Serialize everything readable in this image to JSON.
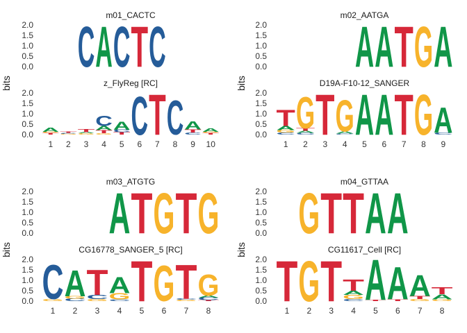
{
  "colors": {
    "A": "#109648",
    "C": "#255C99",
    "G": "#F7B32B",
    "T": "#D62839"
  },
  "chart_data": {
    "type": "sequence_logo",
    "ylabel": "bits",
    "y_ticks": [
      "0.0",
      "0.5",
      "1.0",
      "1.5",
      "2.0"
    ],
    "ylim": [
      0,
      2
    ],
    "panels": [
      {
        "top": {
          "title": "m01_CACTC",
          "offset": 2,
          "positions": [
            [
              [
                "C",
                2.0
              ]
            ],
            [
              [
                "A",
                2.0
              ]
            ],
            [
              [
                "C",
                2.0
              ]
            ],
            [
              [
                "T",
                2.0
              ]
            ],
            [
              [
                "C",
                2.0
              ]
            ]
          ]
        },
        "bottom": {
          "title": "z_FlyReg [RC]",
          "x_labels": [
            "1",
            "2",
            "3",
            "4",
            "5",
            "6",
            "7",
            "8",
            "9",
            "10"
          ],
          "positions": [
            [
              [
                "T",
                0.08
              ],
              [
                "G",
                0.06
              ],
              [
                "A",
                0.2
              ]
            ],
            [
              [
                "G",
                0.04
              ],
              [
                "C",
                0.04
              ],
              [
                "T",
                0.06
              ]
            ],
            [
              [
                "G",
                0.06
              ],
              [
                "A",
                0.06
              ],
              [
                "T",
                0.15
              ]
            ],
            [
              [
                "G",
                0.06
              ],
              [
                "T",
                0.15
              ],
              [
                "A",
                0.2
              ],
              [
                "C",
                0.5
              ]
            ],
            [
              [
                "T",
                0.12
              ],
              [
                "C",
                0.12
              ],
              [
                "A",
                0.4
              ]
            ],
            [
              [
                "C",
                1.9
              ]
            ],
            [
              [
                "T",
                2.0
              ]
            ],
            [
              [
                "C",
                1.7
              ]
            ],
            [
              [
                "C",
                0.1
              ],
              [
                "T",
                0.15
              ],
              [
                "A",
                0.4
              ]
            ],
            [
              [
                "T",
                0.08
              ],
              [
                "G",
                0.06
              ],
              [
                "A",
                0.18
              ]
            ]
          ]
        }
      },
      {
        "top": {
          "title": "m02_AATGA",
          "offset": 4,
          "positions": [
            [
              [
                "A",
                2.0
              ]
            ],
            [
              [
                "A",
                2.0
              ]
            ],
            [
              [
                "T",
                2.0
              ]
            ],
            [
              [
                "G",
                2.0
              ]
            ],
            [
              [
                "A",
                2.0
              ]
            ]
          ]
        },
        "bottom": {
          "title": "D19A-F10-12_SANGER",
          "x_labels": [
            "1",
            "2",
            "3",
            "4",
            "5",
            "6",
            "7",
            "8",
            "9"
          ],
          "positions": [
            [
              [
                "C",
                0.1
              ],
              [
                "G",
                0.12
              ],
              [
                "A",
                0.2
              ],
              [
                "T",
                0.8
              ]
            ],
            [
              [
                "C",
                0.08
              ],
              [
                "A",
                0.1
              ],
              [
                "T",
                0.12
              ],
              [
                "G",
                1.55
              ]
            ],
            [
              [
                "T",
                2.0
              ]
            ],
            [
              [
                "C",
                0.05
              ],
              [
                "A",
                0.1
              ],
              [
                "G",
                1.55
              ]
            ],
            [
              [
                "A",
                2.0
              ]
            ],
            [
              [
                "A",
                2.0
              ]
            ],
            [
              [
                "T",
                2.0
              ]
            ],
            [
              [
                "G",
                2.0
              ]
            ],
            [
              [
                "C",
                0.1
              ],
              [
                "A",
                1.25
              ]
            ]
          ]
        }
      },
      {
        "top": {
          "title": "m03_ATGTG",
          "offset": 3,
          "positions": [
            [
              [
                "A",
                2.0
              ]
            ],
            [
              [
                "T",
                2.0
              ]
            ],
            [
              [
                "G",
                2.0
              ]
            ],
            [
              [
                "T",
                2.0
              ]
            ],
            [
              [
                "G",
                2.0
              ]
            ]
          ]
        },
        "bottom": {
          "title": "CG16778_SANGER_5 [RC]",
          "x_labels": [
            "1",
            "2",
            "3",
            "4",
            "5",
            "6",
            "7",
            "8"
          ],
          "positions": [
            [
              [
                "G",
                0.1
              ],
              [
                "C",
                1.7
              ]
            ],
            [
              [
                "C",
                0.12
              ],
              [
                "G",
                0.12
              ],
              [
                "A",
                1.3
              ]
            ],
            [
              [
                "G",
                0.1
              ],
              [
                "C",
                0.2
              ],
              [
                "T",
                1.25
              ]
            ],
            [
              [
                "C",
                0.08
              ],
              [
                "G",
                0.3
              ],
              [
                "A",
                0.8
              ]
            ],
            [
              [
                "T",
                2.0
              ]
            ],
            [
              [
                "G",
                1.75
              ]
            ],
            [
              [
                "G",
                0.06
              ],
              [
                "C",
                0.06
              ],
              [
                "T",
                1.7
              ]
            ],
            [
              [
                "T",
                0.05
              ],
              [
                "C",
                0.12
              ],
              [
                "A",
                0.1
              ],
              [
                "G",
                1.05
              ]
            ]
          ]
        }
      },
      {
        "top": {
          "title": "m04_GTTAA",
          "offset": 1,
          "positions": [
            [
              [
                "G",
                2.0
              ]
            ],
            [
              [
                "T",
                2.0
              ]
            ],
            [
              [
                "T",
                2.0
              ]
            ],
            [
              [
                "A",
                2.0
              ]
            ],
            [
              [
                "A",
                2.0
              ]
            ]
          ]
        },
        "bottom": {
          "title": "CG11617_Cell [RC]",
          "x_labels": [
            "1",
            "2",
            "3",
            "4",
            "5",
            "6",
            "7",
            "8"
          ],
          "positions": [
            [
              [
                "T",
                2.0
              ]
            ],
            [
              [
                "G",
                2.0
              ]
            ],
            [
              [
                "T",
                2.0
              ]
            ],
            [
              [
                "C",
                0.1
              ],
              [
                "G",
                0.2
              ],
              [
                "A",
                0.2
              ],
              [
                "T",
                0.55
              ]
            ],
            [
              [
                "T",
                0.06
              ],
              [
                "A",
                2.0
              ]
            ],
            [
              [
                "T",
                0.08
              ],
              [
                "A",
                1.6
              ]
            ],
            [
              [
                "G",
                0.1
              ],
              [
                "T",
                0.15
              ],
              [
                "A",
                1.05
              ]
            ],
            [
              [
                "G",
                0.08
              ],
              [
                "A",
                0.25
              ],
              [
                "T",
                0.35
              ]
            ]
          ]
        }
      }
    ]
  }
}
